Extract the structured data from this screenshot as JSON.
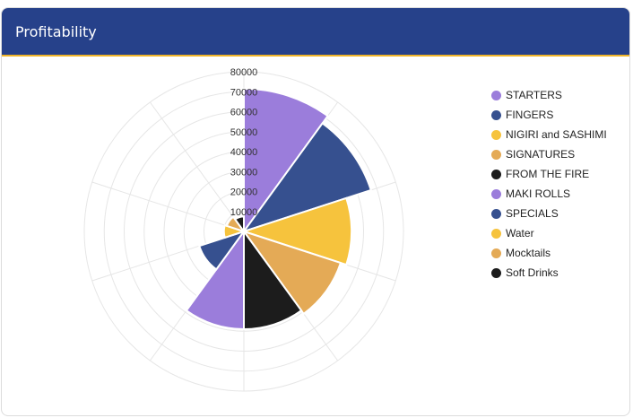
{
  "card": {
    "title": "Profitability"
  },
  "chart_data": {
    "type": "polar-area",
    "categories": [
      "STARTERS",
      "FINGERS",
      "NIGIRI and SASHIMI",
      "SIGNATURES",
      "FROM THE FIRE",
      "MAKI ROLLS",
      "SPECIALS",
      "Water",
      "Mocktails",
      "Soft Drinks"
    ],
    "values": [
      71500,
      67000,
      54000,
      51000,
      49000,
      49000,
      23500,
      10000,
      9000,
      7500
    ],
    "colors": [
      "#9b7ddb",
      "#36508f",
      "#f6c33d",
      "#e4aa56",
      "#1c1c1c",
      "#9b7ddb",
      "#36508f",
      "#f6c33d",
      "#e4aa56",
      "#1c1c1c"
    ],
    "r_ticks": [
      "10000",
      "20000",
      "30000",
      "40000",
      "50000",
      "60000",
      "70000",
      "80000"
    ],
    "r_max": 80000,
    "grid": true,
    "legend_position": "right"
  }
}
